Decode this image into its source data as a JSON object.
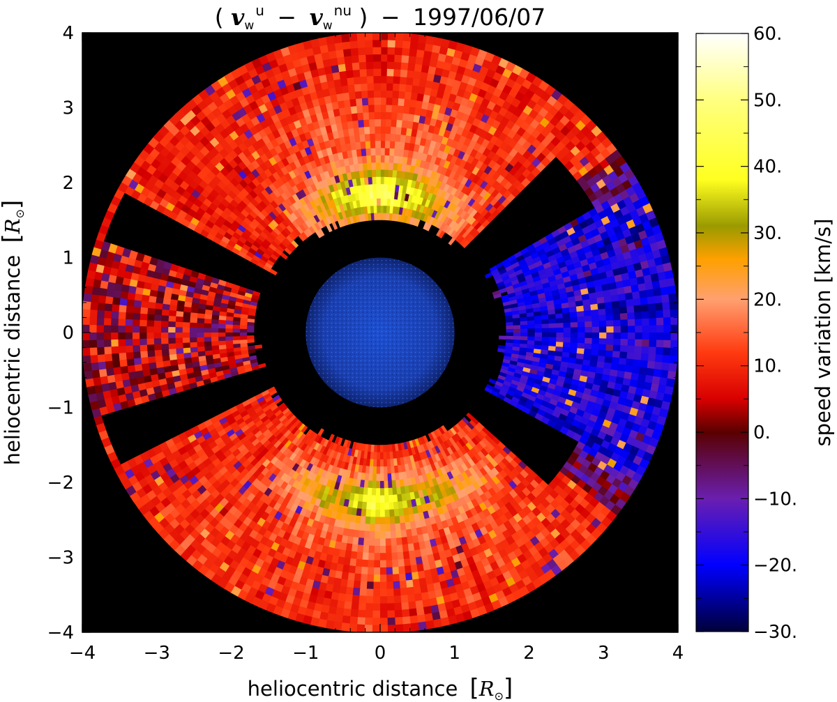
{
  "chart_data": {
    "type": "heatmap",
    "title": "(v_w^u − v_w^nu) − 1997/06/07",
    "title_parts": {
      "open": "(",
      "v1": "v",
      "sub1": "w",
      "sup1": "u",
      "minus": "−",
      "v2": "v",
      "sub2": "w",
      "sup2": "nu",
      "close": ")",
      "dash": "−",
      "date": "1997/06/07"
    },
    "xlabel": "heliocentric distance",
    "ylabel": "heliocentric distance",
    "unit_symbol": "R",
    "unit_sub": "⊙",
    "xlim": [
      -4,
      4
    ],
    "ylim": [
      -4,
      4
    ],
    "x_ticks": [
      "−4",
      "−3",
      "−2",
      "−1",
      "0",
      "1",
      "2",
      "3",
      "4"
    ],
    "y_ticks": [
      "−4",
      "−3",
      "−2",
      "−1",
      "0",
      "1",
      "2",
      "3",
      "4"
    ],
    "grid": false,
    "background_color": "#000000",
    "disk": {
      "center": [
        0,
        0
      ],
      "radius": 1.0,
      "color": "#1a3fb0",
      "description_icon": "sun-euv-disk"
    },
    "occulted_inner_radius_approx": 1.5,
    "outer_field_radius": 4.0,
    "colorbar": {
      "label": "speed variation [km/s]",
      "range": [
        -30,
        60
      ],
      "ticks": [
        60,
        50,
        40,
        30,
        20,
        10,
        0,
        -10,
        -20,
        -30
      ],
      "tick_labels": [
        "60.",
        "50.",
        "40.",
        "30.",
        "20.",
        "10.",
        "0.",
        "−10.",
        "−20.",
        "−30."
      ],
      "colormap": [
        {
          "value": -30,
          "color": "#00003a"
        },
        {
          "value": -20,
          "color": "#0000ff"
        },
        {
          "value": -10,
          "color": "#6a1fb0"
        },
        {
          "value": 0,
          "color": "#5a0000"
        },
        {
          "value": 5,
          "color": "#d80000"
        },
        {
          "value": 12,
          "color": "#ff3a10"
        },
        {
          "value": 20,
          "color": "#ffa070"
        },
        {
          "value": 26,
          "color": "#ffa000"
        },
        {
          "value": 31,
          "color": "#9a9a00"
        },
        {
          "value": 38,
          "color": "#ffff20"
        },
        {
          "value": 50,
          "color": "#ffff80"
        },
        {
          "value": 60,
          "color": "#ffffff"
        }
      ]
    },
    "regions": [
      {
        "name": "north-streamer-band",
        "pa_range_deg": [
          -40,
          40
        ],
        "r_range": [
          1.5,
          4.0
        ],
        "dominant_value": 12,
        "peak_value": 50,
        "peak_r": 1.9
      },
      {
        "name": "south-streamer-band",
        "pa_range_deg": [
          140,
          220
        ],
        "r_range": [
          1.5,
          4.0
        ],
        "dominant_value": 12,
        "peak_value": 40,
        "peak_r": 2.2
      },
      {
        "name": "west-equatorial-negative",
        "pa_range_deg": [
          60,
          110
        ],
        "r_range": [
          1.5,
          4.0
        ],
        "dominant_value": -20
      },
      {
        "name": "east-equatorial-mixed",
        "pa_range_deg": [
          250,
          290
        ],
        "r_range": [
          1.5,
          4.0
        ],
        "dominant_value": 8
      }
    ]
  }
}
